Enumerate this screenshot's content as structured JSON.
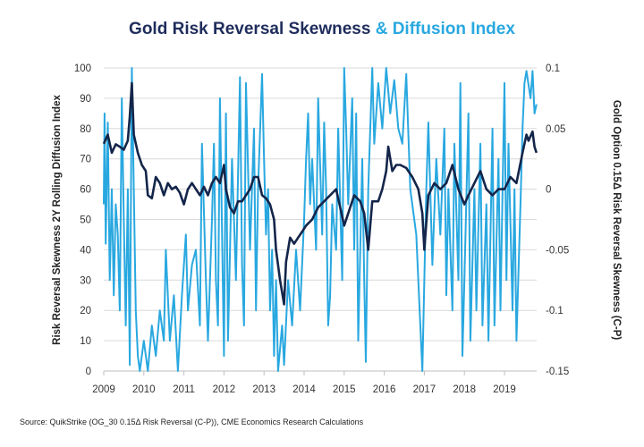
{
  "chart_data": {
    "type": "line",
    "title": "Gold Risk Reversal Skewness",
    "title_accent": "& Diffusion Index",
    "ylabel_left": "Risk Reversal Skewness 2Y Rolling Diffusion Index",
    "ylabel_right": "Gold Option 0.15Δ Risk Reversal Skewness (C-P)",
    "xlabel": "",
    "xlim": [
      2009,
      2019.85
    ],
    "ylim_left": [
      0,
      100
    ],
    "ylim_right": [
      -0.15,
      0.1
    ],
    "x_ticks": [
      "2009",
      "2010",
      "2011",
      "2012",
      "2013",
      "2014",
      "2015",
      "2016",
      "2017",
      "2018",
      "2019"
    ],
    "y_ticks_left": [
      "0",
      "10",
      "20",
      "30",
      "40",
      "50",
      "60",
      "70",
      "80",
      "90",
      "100"
    ],
    "y_ticks_right": [
      "-0.15",
      "-0.1",
      "-0.05",
      "0",
      "0.05",
      "0.1"
    ],
    "grid": true,
    "colors": {
      "skew": "#14254a",
      "diffusion": "#29a8e0",
      "grid": "#d9d9d9"
    },
    "series": [
      {
        "name": "Diffusion Index",
        "axis": "left",
        "color": "#29a8e0",
        "points": [
          [
            2009.0,
            55
          ],
          [
            2009.02,
            85
          ],
          [
            2009.05,
            42
          ],
          [
            2009.1,
            82
          ],
          [
            2009.15,
            30
          ],
          [
            2009.2,
            60
          ],
          [
            2009.25,
            25
          ],
          [
            2009.3,
            55
          ],
          [
            2009.35,
            45
          ],
          [
            2009.4,
            20
          ],
          [
            2009.45,
            90
          ],
          [
            2009.5,
            50
          ],
          [
            2009.55,
            15
          ],
          [
            2009.6,
            60
          ],
          [
            2009.65,
            2
          ],
          [
            2009.7,
            100
          ],
          [
            2009.75,
            60
          ],
          [
            2009.8,
            20
          ],
          [
            2009.85,
            5
          ],
          [
            2009.9,
            0
          ],
          [
            2010.0,
            10
          ],
          [
            2010.1,
            0
          ],
          [
            2010.2,
            15
          ],
          [
            2010.3,
            5
          ],
          [
            2010.4,
            20
          ],
          [
            2010.5,
            10
          ],
          [
            2010.55,
            40
          ],
          [
            2010.65,
            10
          ],
          [
            2010.75,
            25
          ],
          [
            2010.85,
            0
          ],
          [
            2010.95,
            25
          ],
          [
            2011.05,
            45
          ],
          [
            2011.1,
            20
          ],
          [
            2011.2,
            35
          ],
          [
            2011.3,
            40
          ],
          [
            2011.4,
            15
          ],
          [
            2011.45,
            75
          ],
          [
            2011.55,
            30
          ],
          [
            2011.6,
            10
          ],
          [
            2011.7,
            50
          ],
          [
            2011.75,
            75
          ],
          [
            2011.8,
            30
          ],
          [
            2011.85,
            15
          ],
          [
            2011.9,
            90
          ],
          [
            2012.0,
            5
          ],
          [
            2012.05,
            85
          ],
          [
            2012.1,
            10
          ],
          [
            2012.2,
            70
          ],
          [
            2012.3,
            30
          ],
          [
            2012.4,
            97
          ],
          [
            2012.45,
            35
          ],
          [
            2012.5,
            15
          ],
          [
            2012.55,
            95
          ],
          [
            2012.65,
            40
          ],
          [
            2012.75,
            80
          ],
          [
            2012.8,
            20
          ],
          [
            2012.85,
            60
          ],
          [
            2012.95,
            98
          ],
          [
            2013.0,
            70
          ],
          [
            2013.05,
            45
          ],
          [
            2013.1,
            60
          ],
          [
            2013.15,
            20
          ],
          [
            2013.2,
            40
          ],
          [
            2013.25,
            5
          ],
          [
            2013.3,
            30
          ],
          [
            2013.35,
            0
          ],
          [
            2013.45,
            15
          ],
          [
            2013.5,
            2
          ],
          [
            2013.6,
            30
          ],
          [
            2013.7,
            15
          ],
          [
            2013.8,
            40
          ],
          [
            2013.9,
            20
          ],
          [
            2014.0,
            50
          ],
          [
            2014.05,
            70
          ],
          [
            2014.1,
            85
          ],
          [
            2014.15,
            55
          ],
          [
            2014.2,
            70
          ],
          [
            2014.3,
            40
          ],
          [
            2014.35,
            90
          ],
          [
            2014.45,
            45
          ],
          [
            2014.5,
            82
          ],
          [
            2014.55,
            60
          ],
          [
            2014.6,
            15
          ],
          [
            2014.65,
            25
          ],
          [
            2014.7,
            55
          ],
          [
            2014.8,
            40
          ],
          [
            2014.85,
            80
          ],
          [
            2014.95,
            30
          ],
          [
            2015.0,
            100
          ],
          [
            2015.05,
            80
          ],
          [
            2015.1,
            55
          ],
          [
            2015.2,
            90
          ],
          [
            2015.25,
            40
          ],
          [
            2015.3,
            85
          ],
          [
            2015.35,
            10
          ],
          [
            2015.45,
            70
          ],
          [
            2015.5,
            30
          ],
          [
            2015.54,
            3
          ],
          [
            2015.6,
            60
          ],
          [
            2015.7,
            100
          ],
          [
            2015.75,
            75
          ],
          [
            2015.85,
            95
          ],
          [
            2015.95,
            80
          ],
          [
            2016.05,
            100
          ],
          [
            2016.15,
            85
          ],
          [
            2016.25,
            96
          ],
          [
            2016.35,
            80
          ],
          [
            2016.45,
            75
          ],
          [
            2016.55,
            98
          ],
          [
            2016.65,
            60
          ],
          [
            2016.8,
            45
          ],
          [
            2016.95,
            0
          ],
          [
            2017.05,
            60
          ],
          [
            2017.1,
            82
          ],
          [
            2017.2,
            35
          ],
          [
            2017.3,
            70
          ],
          [
            2017.4,
            45
          ],
          [
            2017.5,
            80
          ],
          [
            2017.55,
            25
          ],
          [
            2017.6,
            60
          ],
          [
            2017.7,
            20
          ],
          [
            2017.75,
            75
          ],
          [
            2017.85,
            30
          ],
          [
            2017.9,
            95
          ],
          [
            2017.95,
            5
          ],
          [
            2018.0,
            30
          ],
          [
            2018.1,
            85
          ],
          [
            2018.15,
            10
          ],
          [
            2018.25,
            60
          ],
          [
            2018.3,
            20
          ],
          [
            2018.4,
            75
          ],
          [
            2018.45,
            15
          ],
          [
            2018.55,
            55
          ],
          [
            2018.6,
            10
          ],
          [
            2018.7,
            80
          ],
          [
            2018.75,
            15
          ],
          [
            2018.85,
            70
          ],
          [
            2018.9,
            20
          ],
          [
            2019.0,
            95
          ],
          [
            2019.05,
            30
          ],
          [
            2019.1,
            75
          ],
          [
            2019.2,
            20
          ],
          [
            2019.25,
            60
          ],
          [
            2019.3,
            10
          ],
          [
            2019.4,
            55
          ],
          [
            2019.45,
            80
          ],
          [
            2019.5,
            95
          ],
          [
            2019.55,
            99
          ],
          [
            2019.65,
            90
          ],
          [
            2019.7,
            99
          ],
          [
            2019.75,
            85
          ],
          [
            2019.8,
            88
          ]
        ]
      },
      {
        "name": "Risk Reversal Skewness",
        "axis": "right",
        "color": "#14254a",
        "points": [
          [
            2009.0,
            0.0375
          ],
          [
            2009.1,
            0.045
          ],
          [
            2009.2,
            0.03
          ],
          [
            2009.3,
            0.037
          ],
          [
            2009.4,
            0.035
          ],
          [
            2009.5,
            0.0325
          ],
          [
            2009.6,
            0.04
          ],
          [
            2009.65,
            0.06
          ],
          [
            2009.7,
            0.0875
          ],
          [
            2009.75,
            0.045
          ],
          [
            2009.85,
            0.03
          ],
          [
            2009.95,
            0.02
          ],
          [
            2010.05,
            0.015
          ],
          [
            2010.1,
            -0.005
          ],
          [
            2010.2,
            -0.0075
          ],
          [
            2010.3,
            0.01
          ],
          [
            2010.4,
            0.005
          ],
          [
            2010.5,
            -0.005
          ],
          [
            2010.6,
            0.005
          ],
          [
            2010.7,
            0.0
          ],
          [
            2010.8,
            0.002
          ],
          [
            2010.9,
            -0.003
          ],
          [
            2011.0,
            -0.0125
          ],
          [
            2011.1,
            0.0
          ],
          [
            2011.2,
            0.005
          ],
          [
            2011.3,
            0.0
          ],
          [
            2011.4,
            -0.005
          ],
          [
            2011.5,
            0.002
          ],
          [
            2011.6,
            -0.005
          ],
          [
            2011.7,
            0.005
          ],
          [
            2011.8,
            0.01
          ],
          [
            2011.9,
            0.005
          ],
          [
            2012.0,
            0.02
          ],
          [
            2012.05,
            0.0
          ],
          [
            2012.15,
            -0.015
          ],
          [
            2012.25,
            -0.02
          ],
          [
            2012.35,
            -0.01
          ],
          [
            2012.45,
            -0.01
          ],
          [
            2012.55,
            -0.005
          ],
          [
            2012.65,
            0.0
          ],
          [
            2012.75,
            0.01
          ],
          [
            2012.85,
            0.01
          ],
          [
            2012.95,
            -0.005
          ],
          [
            2013.05,
            -0.0075
          ],
          [
            2013.15,
            -0.0125
          ],
          [
            2013.25,
            -0.025
          ],
          [
            2013.3,
            -0.05
          ],
          [
            2013.4,
            -0.075
          ],
          [
            2013.5,
            -0.095
          ],
          [
            2013.55,
            -0.06
          ],
          [
            2013.65,
            -0.04
          ],
          [
            2013.75,
            -0.045
          ],
          [
            2013.85,
            -0.04
          ],
          [
            2013.95,
            -0.035
          ],
          [
            2014.05,
            -0.03
          ],
          [
            2014.2,
            -0.025
          ],
          [
            2014.35,
            -0.015
          ],
          [
            2014.5,
            -0.01
          ],
          [
            2014.65,
            -0.005
          ],
          [
            2014.8,
            0.0
          ],
          [
            2014.9,
            -0.015
          ],
          [
            2015.0,
            -0.03
          ],
          [
            2015.1,
            -0.02
          ],
          [
            2015.25,
            -0.005
          ],
          [
            2015.4,
            -0.01
          ],
          [
            2015.5,
            -0.02
          ],
          [
            2015.6,
            -0.05
          ],
          [
            2015.7,
            -0.01
          ],
          [
            2015.85,
            -0.01
          ],
          [
            2015.95,
            0.0
          ],
          [
            2016.05,
            0.015
          ],
          [
            2016.1,
            0.035
          ],
          [
            2016.2,
            0.015
          ],
          [
            2016.3,
            0.02
          ],
          [
            2016.4,
            0.02
          ],
          [
            2016.55,
            0.0175
          ],
          [
            2016.7,
            0.01
          ],
          [
            2016.85,
            0.0
          ],
          [
            2016.95,
            -0.02
          ],
          [
            2017.0,
            -0.05
          ],
          [
            2017.1,
            -0.005
          ],
          [
            2017.25,
            0.005
          ],
          [
            2017.4,
            0.0
          ],
          [
            2017.55,
            0.005
          ],
          [
            2017.7,
            0.02
          ],
          [
            2017.85,
            0.0
          ],
          [
            2018.0,
            -0.0125
          ],
          [
            2018.1,
            -0.005
          ],
          [
            2018.25,
            0.005
          ],
          [
            2018.4,
            0.015
          ],
          [
            2018.55,
            0.0
          ],
          [
            2018.7,
            -0.005
          ],
          [
            2018.85,
            0.0
          ],
          [
            2019.0,
            0.0
          ],
          [
            2019.15,
            0.01
          ],
          [
            2019.3,
            0.005
          ],
          [
            2019.45,
            0.03
          ],
          [
            2019.55,
            0.045
          ],
          [
            2019.6,
            0.04
          ],
          [
            2019.7,
            0.0475
          ],
          [
            2019.75,
            0.035
          ],
          [
            2019.8,
            0.03
          ]
        ]
      }
    ]
  },
  "source": "Source: QuikStrike (OG_30 0.15Δ Risk Reversal (C-P)), CME Economics Research Calculations"
}
